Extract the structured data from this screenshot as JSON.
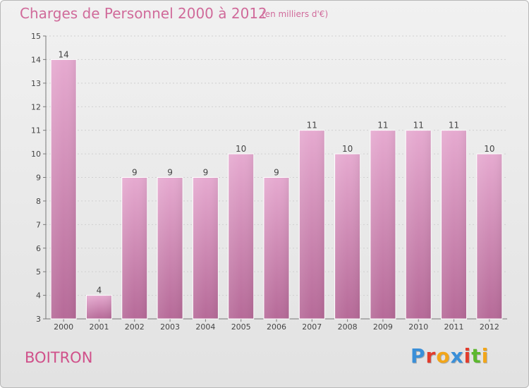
{
  "header": {
    "title": "Charges de Personnel 2000 à 2012",
    "subtitle": "(en milliers d'€)"
  },
  "footer": {
    "city": "BOITRON",
    "logo_text": "Proxiti",
    "logo_colors": [
      "#3a8fd8",
      "#e23c2c",
      "#f2a61a",
      "#3a8fd8",
      "#e23c2c",
      "#5cb82e",
      "#f2a61a"
    ]
  },
  "chart_data": {
    "type": "bar",
    "categories": [
      "2000",
      "2001",
      "2002",
      "2003",
      "2004",
      "2005",
      "2006",
      "2007",
      "2008",
      "2009",
      "2010",
      "2011",
      "2012"
    ],
    "values": [
      14,
      4,
      9,
      9,
      9,
      10,
      9,
      11,
      10,
      11,
      11,
      11,
      10
    ],
    "value_labels": [
      "14",
      "4",
      "9",
      "9",
      "9",
      "10",
      "9",
      "11",
      "10",
      "11",
      "11",
      "11",
      "10"
    ],
    "yticks": [
      3,
      4,
      5,
      6,
      7,
      8,
      9,
      10,
      11,
      12,
      13,
      14,
      15
    ],
    "ylim": [
      3,
      15
    ],
    "grid": true,
    "bar_color": "#d98ab6",
    "title": "Charges de Personnel 2000 à 2012",
    "xlabel": "",
    "ylabel": ""
  }
}
